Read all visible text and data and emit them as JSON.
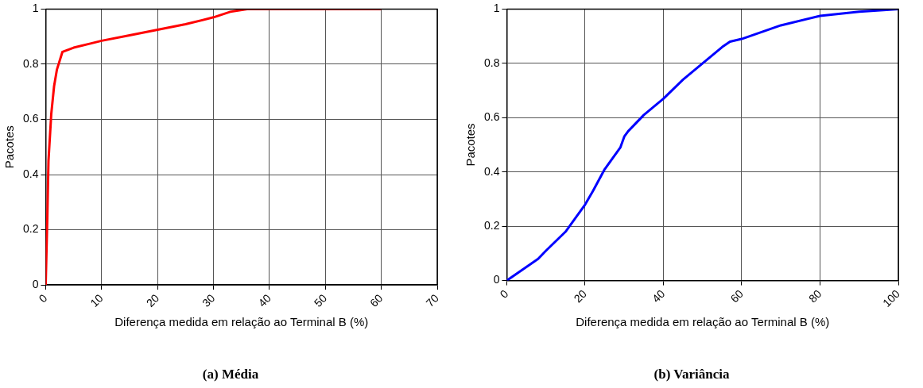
{
  "chart_data": [
    {
      "type": "line",
      "title": "(a)  Média",
      "xlabel": "Diferença medida em relação ao Terminal B (%)",
      "ylabel": "Pacotes",
      "x": [
        0,
        0.3,
        0.5,
        1,
        1.5,
        2,
        3,
        5,
        8,
        10,
        15,
        20,
        25,
        30,
        33,
        36,
        60
      ],
      "series": [
        {
          "color": "#ff0000",
          "values": [
            0,
            0.25,
            0.45,
            0.62,
            0.72,
            0.78,
            0.845,
            0.86,
            0.875,
            0.885,
            0.905,
            0.925,
            0.945,
            0.97,
            0.99,
            1,
            1
          ]
        }
      ],
      "xlim": [
        0,
        70
      ],
      "xticks": [
        0,
        10,
        20,
        30,
        40,
        50,
        60,
        70
      ],
      "ylim": [
        0,
        1
      ],
      "yticks": [
        0,
        0.2,
        0.4,
        0.6,
        0.8,
        1
      ],
      "grid": true,
      "legend": false,
      "marker": "none",
      "line_style": "solid"
    },
    {
      "type": "line",
      "title": "(b)  Variância",
      "xlabel": "Diferença medida em relação ao Terminal B (%)",
      "ylabel": "Pacotes",
      "x": [
        0,
        5,
        8,
        10,
        15,
        20,
        22,
        25,
        29,
        30,
        31,
        35,
        40,
        45,
        50,
        55,
        57,
        60,
        70,
        80,
        90,
        100
      ],
      "series": [
        {
          "color": "#0000ff",
          "values": [
            0,
            0.05,
            0.08,
            0.11,
            0.18,
            0.28,
            0.33,
            0.41,
            0.49,
            0.53,
            0.55,
            0.61,
            0.67,
            0.74,
            0.8,
            0.86,
            0.88,
            0.89,
            0.94,
            0.975,
            0.99,
            1
          ]
        }
      ],
      "xlim": [
        0,
        100
      ],
      "xticks": [
        0,
        20,
        40,
        60,
        80,
        100
      ],
      "ylim": [
        0,
        1
      ],
      "yticks": [
        0,
        0.2,
        0.4,
        0.6,
        0.8,
        1
      ],
      "grid": true,
      "legend": false,
      "marker": "none",
      "line_style": "solid"
    }
  ]
}
